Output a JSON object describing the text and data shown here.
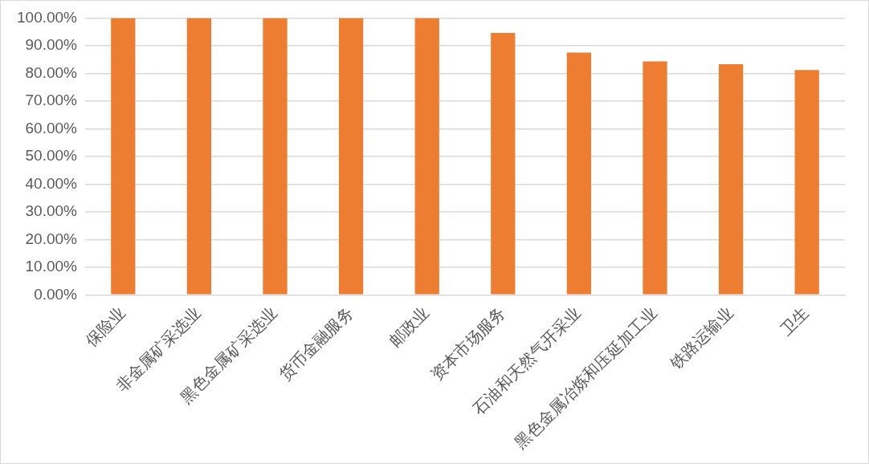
{
  "chart_data": {
    "type": "bar",
    "categories": [
      "保险业",
      "非金属矿采选业",
      "黑色金属矿采选业",
      "货币金融服务",
      "邮政业",
      "资本市场服务",
      "石油和天然气开采业",
      "黑色金属冶炼和压延加工业",
      "铁路运输业",
      "卫生"
    ],
    "series": [
      {
        "color": "#ed7d31",
        "values": [
          100,
          100,
          100,
          100,
          100,
          94.6,
          87.5,
          84.3,
          83.3,
          81.2
        ]
      }
    ],
    "ylim": [
      0,
      100
    ],
    "yticks": [
      {
        "value": 0,
        "label": "0.00%"
      },
      {
        "value": 10,
        "label": "10.00%"
      },
      {
        "value": 20,
        "label": "20.00%"
      },
      {
        "value": 30,
        "label": "30.00%"
      },
      {
        "value": 40,
        "label": "40.00%"
      },
      {
        "value": 50,
        "label": "50.00%"
      },
      {
        "value": 60,
        "label": "60.00%"
      },
      {
        "value": 70,
        "label": "70.00%"
      },
      {
        "value": 80,
        "label": "80.00%"
      },
      {
        "value": 90,
        "label": "90.00%"
      },
      {
        "value": 100,
        "label": "100.00%"
      }
    ],
    "grid": "y",
    "legend": false
  }
}
